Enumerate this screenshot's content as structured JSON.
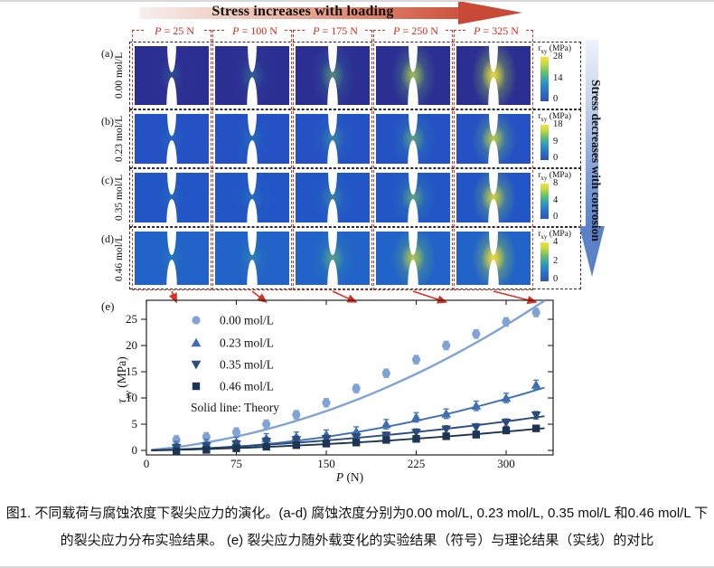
{
  "header": {
    "top_arrow_label": "Stress increases with loading",
    "right_arrow_label": "Stress decreases with corrosion"
  },
  "tau_label": {
    "symbol": "τ",
    "subscript": "xy",
    "unit": "(MPa)"
  },
  "grid": {
    "column_labels": [
      "P = 25 N",
      "P = 100 N",
      "P = 175 N",
      "P = 250 N",
      "P = 325 N"
    ],
    "rows": [
      {
        "panel_label": "(a)",
        "concentration": "0.00 mol/L",
        "colorbar_ticks": [
          28,
          14,
          0
        ],
        "base_color": "#2c2f92",
        "hotspot_intensity": [
          0.05,
          0.15,
          0.4,
          0.7,
          0.97
        ]
      },
      {
        "panel_label": "(b)",
        "concentration": "0.23 mol/L",
        "colorbar_ticks": [
          18,
          9,
          0
        ],
        "base_color": "#2452c4",
        "hotspot_intensity": [
          0.03,
          0.08,
          0.26,
          0.46,
          0.8
        ]
      },
      {
        "panel_label": "(c)",
        "concentration": "0.35 mol/L",
        "colorbar_ticks": [
          8,
          4,
          0
        ],
        "base_color": "#2256c6",
        "hotspot_intensity": [
          0.03,
          0.08,
          0.24,
          0.46,
          0.88
        ]
      },
      {
        "panel_label": "(d)",
        "concentration": "0.46 mol/L",
        "colorbar_ticks": [
          4,
          2,
          0
        ],
        "base_color": "#2163c8",
        "hotspot_intensity": [
          0.06,
          0.16,
          0.42,
          0.78,
          1.0
        ]
      }
    ]
  },
  "chart_data": {
    "type": "scatter",
    "panel_label": "(e)",
    "xlabel": {
      "symbol": "P",
      "unit": "(N)"
    },
    "ylabel": {
      "symbol": "τ",
      "subscript": "xy",
      "unit": "(MPa)"
    },
    "x_ticks": [
      0,
      75,
      150,
      225,
      300
    ],
    "y_ticks": [
      0,
      5,
      10,
      15,
      20,
      25
    ],
    "xlim": [
      0,
      339
    ],
    "ylim": [
      -1.2,
      28.6
    ],
    "x": [
      25,
      50,
      75,
      100,
      125,
      150,
      175,
      200,
      225,
      250,
      275,
      300,
      325
    ],
    "series": [
      {
        "name": "0.00 mol/L",
        "marker": "circle",
        "color": "#7fa3d4",
        "error": 0.8,
        "values": [
          2.0,
          2.6,
          3.5,
          5.0,
          6.8,
          9.1,
          11.8,
          14.7,
          17.3,
          20.0,
          22.2,
          24.5,
          26.3
        ],
        "theory_quadratic": {
          "a": 0.0001978,
          "b": 0.02033
        }
      },
      {
        "name": "0.23 mol/L",
        "marker": "triangle-up",
        "color": "#3e6fb3",
        "error": 0.9,
        "values": [
          0.8,
          1.2,
          1.6,
          2.3,
          2.6,
          3.0,
          3.6,
          5.0,
          6.3,
          7.0,
          8.5,
          10.0,
          12.5
        ],
        "theory_quadratic": {
          "a": 0.00010316,
          "b": 0.001856
        }
      },
      {
        "name": "0.35 mol/L",
        "marker": "triangle-down",
        "color": "#2b4d7e",
        "error": 0.7,
        "values": [
          0.5,
          0.8,
          1.2,
          1.7,
          2.0,
          2.2,
          2.5,
          2.8,
          3.4,
          4.0,
          4.4,
          5.3,
          6.7
        ],
        "theory_quadratic": {
          "a": 3.839e-05,
          "b": 0.006909
        }
      },
      {
        "name": "0.46 mol/L",
        "marker": "square",
        "color": "#1c3553",
        "error": 0.55,
        "values": [
          -0.2,
          0.1,
          0.4,
          0.7,
          1.0,
          1.3,
          1.5,
          2.0,
          2.2,
          2.7,
          3.0,
          3.8,
          4.2
        ],
        "theory_quadratic": {
          "a": 2.637e-05,
          "b": 0.004044
        }
      }
    ],
    "legend_note": "Solid line: Theory",
    "legend_position": "top-left",
    "grid_lines": false
  },
  "connector_color": "#d93025",
  "caption": {
    "line1": "图1. 不同载荷与腐蚀浓度下裂尖应力的演化。(a-d) 腐蚀浓度分别为0.00 mol/L, 0.23 mol/L, 0.35 mol/L 和0.46 mol/L 下",
    "line2": "的裂尖应力分布实验结果。 (e) 裂尖应力随外载变化的实验结果（符号）与理论结果（实线）的对比"
  }
}
